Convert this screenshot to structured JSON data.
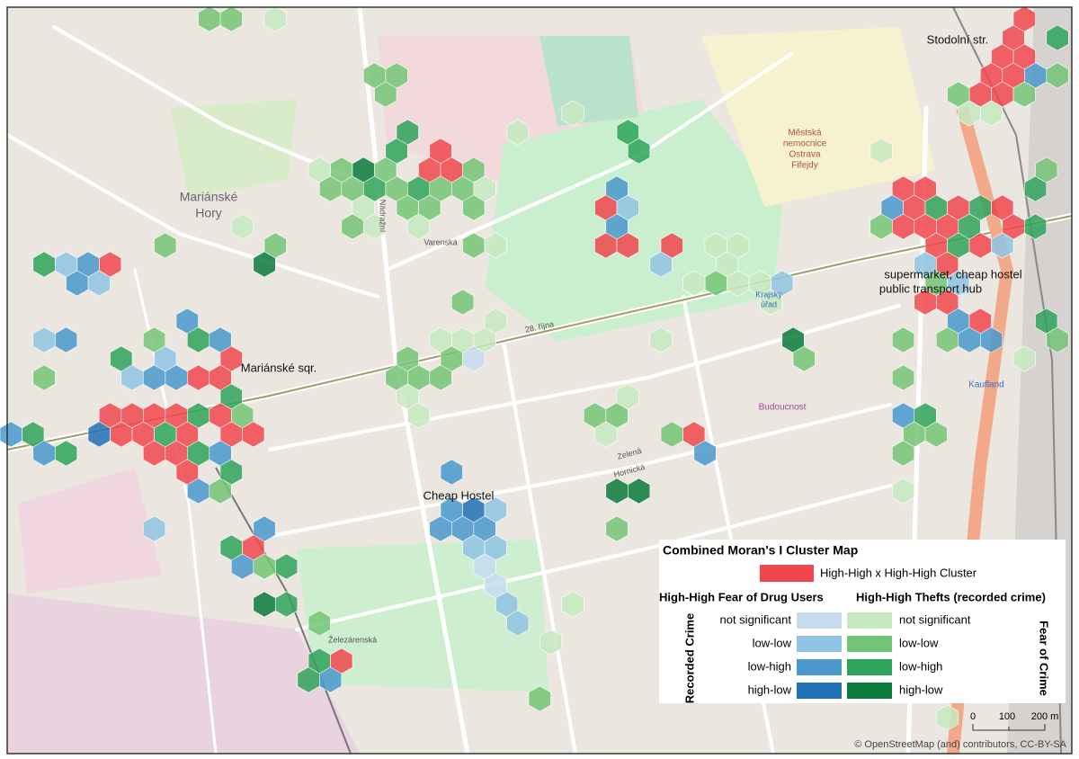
{
  "map": {
    "labels": [
      "Stodolní str.",
      "Mariánské",
      "Hory",
      "Mariánské sqr.",
      "Cheap Hostel",
      "supermarket, cheap hostel",
      "public transport hub",
      "Městská",
      "nemocnice",
      "Ostrava",
      "Fifejdy",
      "Kaufland",
      "Budoucnost",
      "Krajský",
      "úřad",
      "28. října",
      "Železárenská",
      "Nádražní",
      "Varenská",
      "Zelená",
      "Hornická"
    ]
  },
  "legend": {
    "title": "Combined Moran's I Cluster Map",
    "combined": {
      "label": "High-High x High-High Cluster",
      "color": "#f0464c"
    },
    "fear_header": "High-High Fear of Drug Users",
    "theft_header": "High-High Thefts (recorded crime)",
    "fear_classes": [
      {
        "label": "not significant",
        "color": "#c6dcef"
      },
      {
        "label": "low-low",
        "color": "#90c3e3"
      },
      {
        "label": "low-high",
        "color": "#4a98cc"
      },
      {
        "label": "high-low",
        "color": "#2270b5"
      }
    ],
    "theft_classes": [
      {
        "label": "not significant",
        "color": "#c7e9c0"
      },
      {
        "label": "low-low",
        "color": "#74c476"
      },
      {
        "label": "low-high",
        "color": "#2fa35a"
      },
      {
        "label": "high-low",
        "color": "#0b7a3c"
      }
    ],
    "left_axis": "Recorded Crime",
    "right_axis": "Fear of Crime"
  },
  "scale": [
    "0",
    "100",
    "200 m"
  ],
  "attribution": "© OpenStreetMap (and) contributors, CC-BY-SA"
}
